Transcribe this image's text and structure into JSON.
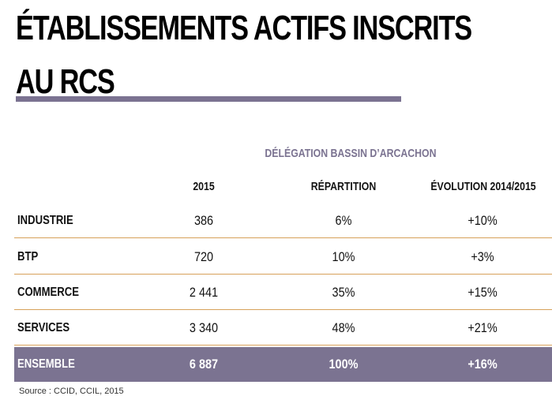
{
  "title_line1": "ÉTABLISSEMENTS ACTIFS INSCRITS",
  "title_line2": "AU RCS",
  "column_group": "DÉLÉGATION BASSIN D’ARCACHON",
  "headers": [
    "2015",
    "RÉPARTITION",
    "ÉVOLUTION 2014/2015"
  ],
  "rows": [
    {
      "label": "INDUSTRIE",
      "value_2015": "386",
      "repartition": "6%",
      "evolution": "+10%"
    },
    {
      "label": "BTP",
      "value_2015": "720",
      "repartition": "10%",
      "evolution": "+3%"
    },
    {
      "label": "COMMERCE",
      "value_2015": "2 441",
      "repartition": "35%",
      "evolution": "+15%"
    },
    {
      "label": "SERVICES",
      "value_2015": "3 340",
      "repartition": "48%",
      "evolution": "+21%"
    }
  ],
  "total": {
    "label": "ENSEMBLE",
    "value_2015": "6 887",
    "repartition": "100%",
    "evolution": "+16%"
  },
  "source": "Source : CCID, CCIL, 2015",
  "colors": {
    "accent": "#7b7391",
    "row_rule": "#d7a15a",
    "total_text": "#ffffff"
  }
}
